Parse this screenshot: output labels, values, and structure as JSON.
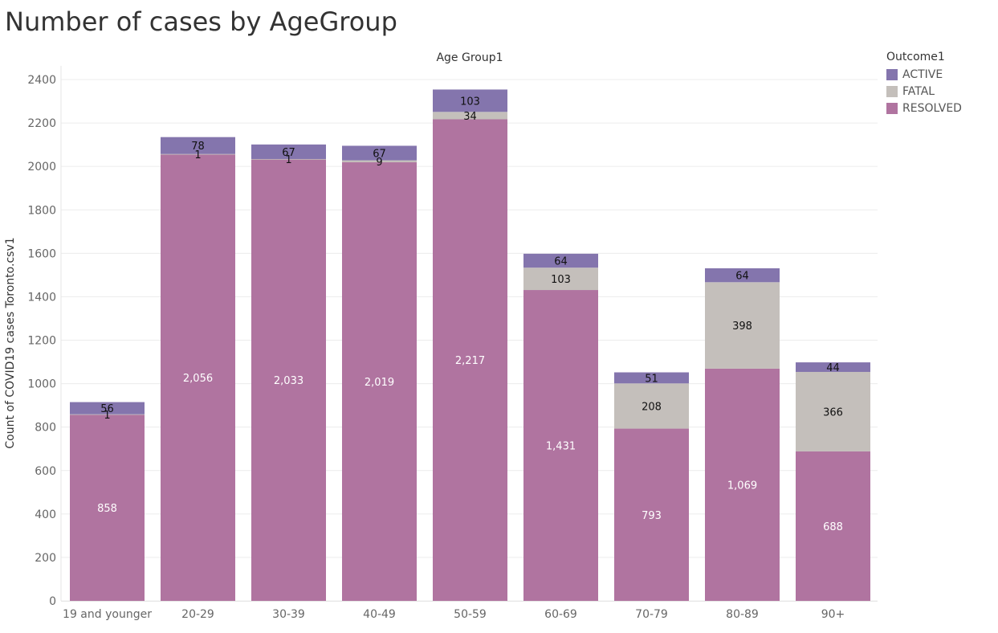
{
  "page": {
    "title": "Number of cases by AgeGroup"
  },
  "chart_data": {
    "type": "bar",
    "stacked": true,
    "title": "Number of cases by AgeGroup",
    "column_header": "Age Group1",
    "xlabel": "",
    "ylabel": "Count of COVID19 cases Toronto.csv1",
    "categories": [
      "19 and younger",
      "20-29",
      "30-39",
      "40-49",
      "50-59",
      "60-69",
      "70-79",
      "80-89",
      "90+"
    ],
    "series": [
      {
        "name": "RESOLVED",
        "color": "#b074a0",
        "label_color": "#ffffff",
        "values": [
          858,
          2056,
          2033,
          2019,
          2217,
          1431,
          793,
          1069,
          688
        ]
      },
      {
        "name": "FATAL",
        "color": "#c4bfbb",
        "label_color": "#111111",
        "values": [
          1,
          1,
          1,
          9,
          34,
          103,
          208,
          398,
          366
        ]
      },
      {
        "name": "ACTIVE",
        "color": "#8475ad",
        "label_color": "#111111",
        "values": [
          56,
          78,
          67,
          67,
          103,
          64,
          51,
          64,
          44
        ]
      }
    ],
    "data_labels": {
      "RESOLVED": [
        "858",
        "2,056",
        "2,033",
        "2,019",
        "2,217",
        "1,431",
        "793",
        "1,069",
        "688"
      ],
      "FATAL": [
        "1",
        "1",
        "1",
        "9",
        "34",
        "103",
        "208",
        "398",
        "366"
      ],
      "ACTIVE": [
        "56",
        "78",
        "67",
        "67",
        "103",
        "64",
        "51",
        "64",
        "44"
      ]
    },
    "ylim": [
      0,
      2400
    ],
    "yticks": [
      0,
      200,
      400,
      600,
      800,
      1000,
      1200,
      1400,
      1600,
      1800,
      2000,
      2200,
      2400
    ],
    "grid": true,
    "legend": {
      "title": "Outcome1",
      "position": "top-right",
      "items": [
        {
          "label": "ACTIVE",
          "color": "#8475ad"
        },
        {
          "label": "FATAL",
          "color": "#c4bfbb"
        },
        {
          "label": "RESOLVED",
          "color": "#b074a0"
        }
      ]
    }
  }
}
